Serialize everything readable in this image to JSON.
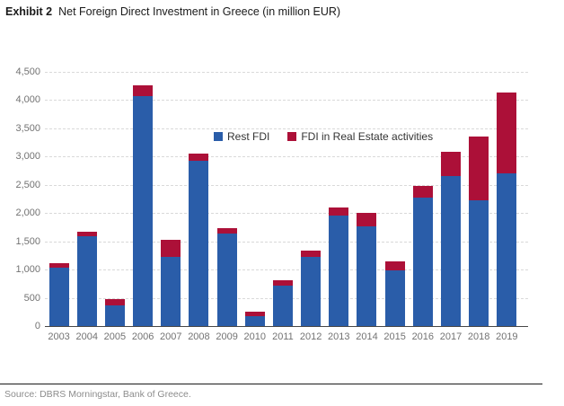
{
  "header": {
    "exhibit_label": "Exhibit 2",
    "title": "Net Foreign Direct Investment in Greece (in million EUR)"
  },
  "footer": {
    "source": "Source: DBRS Morningstar, Bank of Greece."
  },
  "colors": {
    "rest_fdi": "#2A5DA9",
    "real_estate": "#AC1038",
    "gridline": "#D9D9D9",
    "axis_line": "#474747",
    "tick_label": "#737373",
    "legend_text": "#333333"
  },
  "chart_data": {
    "type": "bar",
    "stacked": true,
    "title": "Net Foreign Direct Investment in Greece (in million EUR)",
    "xlabel": "",
    "ylabel": "",
    "ylim": [
      0,
      4500
    ],
    "ytick_step": 500,
    "ytick_labels": [
      "0",
      "500",
      "1,000",
      "1,500",
      "2,000",
      "2,500",
      "3,000",
      "3,500",
      "4,000",
      "4,500"
    ],
    "grid": "horizontal-dashed",
    "legend_position": "upper-center-inside",
    "categories": [
      "2003",
      "2004",
      "2005",
      "2006",
      "2007",
      "2008",
      "2009",
      "2010",
      "2011",
      "2012",
      "2013",
      "2014",
      "2015",
      "2016",
      "2017",
      "2018",
      "2019"
    ],
    "series": [
      {
        "name": "Rest FDI",
        "color": "#2A5DA9",
        "values": [
          1040,
          1590,
          370,
          4070,
          1230,
          2930,
          1640,
          180,
          720,
          1230,
          1950,
          1770,
          980,
          2270,
          2650,
          2230,
          2700
        ]
      },
      {
        "name": "FDI in Real Estate activities",
        "color": "#AC1038",
        "values": [
          70,
          80,
          110,
          190,
          300,
          130,
          100,
          80,
          95,
          110,
          150,
          240,
          160,
          210,
          430,
          1120,
          1440
        ]
      }
    ],
    "totals": [
      1110,
      1670,
      480,
      4260,
      1530,
      3060,
      1740,
      260,
      815,
      1340,
      2100,
      2010,
      1140,
      2480,
      3080,
      3350,
      4140
    ]
  }
}
